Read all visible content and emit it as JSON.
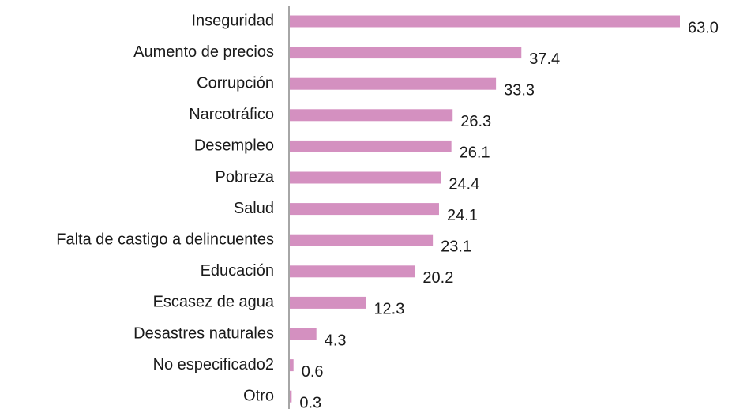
{
  "chart_data": {
    "type": "bar",
    "orientation": "horizontal",
    "categories": [
      "Inseguridad",
      "Aumento de precios",
      "Corrupción",
      "Narcotráfico",
      "Desempleo",
      "Pobreza",
      "Salud",
      "Falta de castigo a delincuentes",
      "Educación",
      "Escasez de agua",
      "Desastres naturales",
      "No especificado2",
      "Otro"
    ],
    "values": [
      63.0,
      37.4,
      33.3,
      26.3,
      26.1,
      24.4,
      24.1,
      23.1,
      20.2,
      12.3,
      4.3,
      0.6,
      0.3
    ],
    "value_labels": [
      "63.0",
      "37.4",
      "33.3",
      "26.3",
      "26.1",
      "24.4",
      "24.1",
      "23.1",
      "20.2",
      "12.3",
      "4.3",
      "0.6",
      "0.3"
    ],
    "color": "#d490c0"
  }
}
